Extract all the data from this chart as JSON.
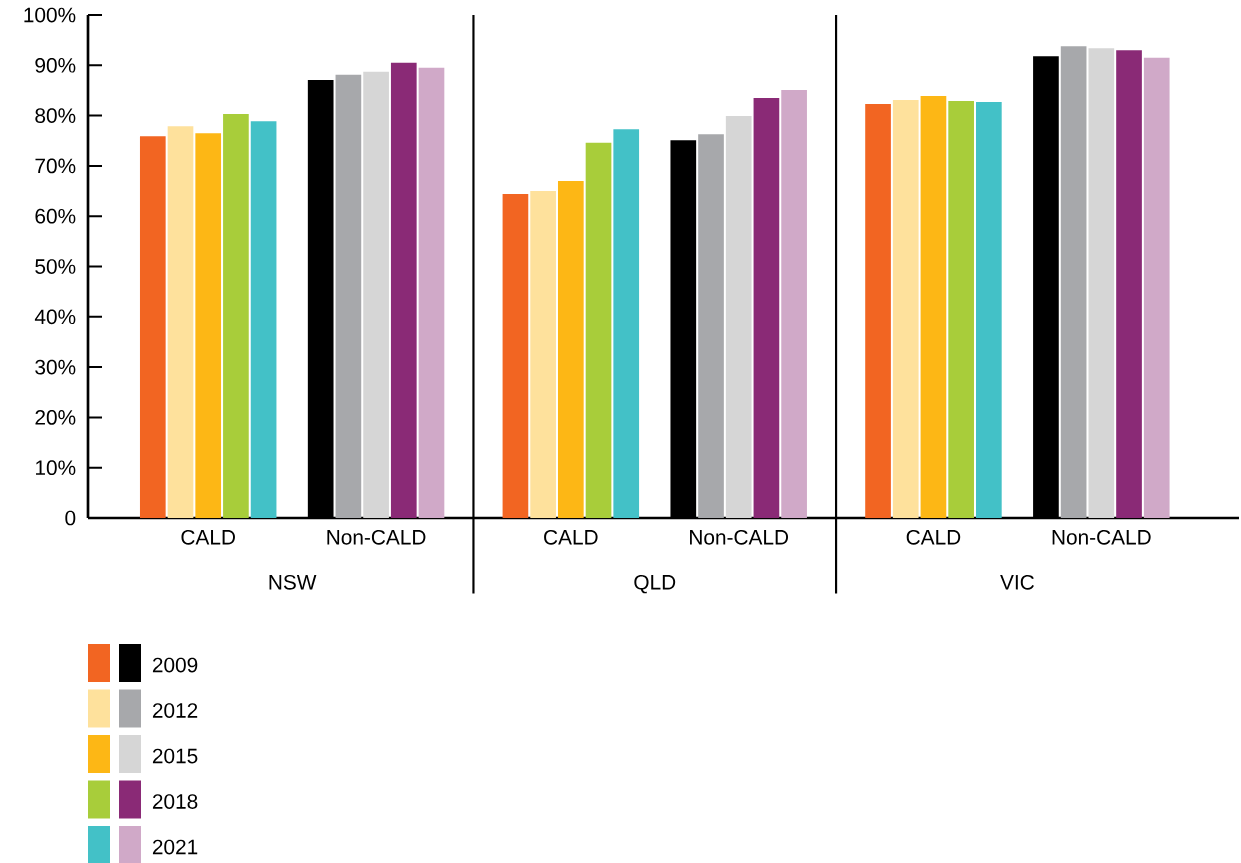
{
  "chart_data": {
    "type": "bar",
    "categories": [
      "CALD",
      "Non-CALD",
      "CALD",
      "Non-CALD",
      "CALD",
      "Non-CALD"
    ],
    "annotations": [
      "NSW",
      "QLD",
      "VIC"
    ],
    "ylim": [
      0,
      100
    ],
    "yticks": [
      0,
      {
        "value": 10,
        "label": "10%"
      },
      {
        "value": 20,
        "label": "20%"
      },
      {
        "value": 30,
        "label": "30%"
      },
      {
        "value": 40,
        "label": "40%"
      },
      {
        "value": 50,
        "label": "50%"
      },
      {
        "value": 60,
        "label": "60%"
      },
      {
        "value": 70,
        "label": "70%"
      },
      {
        "value": 80,
        "label": "80%"
      },
      {
        "value": 90,
        "label": "90%"
      },
      {
        "value": 100,
        "label": "100%"
      }
    ],
    "grid": false,
    "legend": "bottom left",
    "series": [
      {
        "name": "2009",
        "colors": [
          "#f26522",
          "#000000",
          "#f26522",
          "#000000",
          "#f26522",
          "#000000"
        ],
        "values": [
          75.9,
          87.1,
          64.4,
          75.1,
          82.3,
          91.8
        ]
      },
      {
        "name": "2012",
        "colors": [
          "#fee19c",
          "#a7a8ab",
          "#fee19c",
          "#a7a8ab",
          "#fee19c",
          "#a7a8ab"
        ],
        "values": [
          77.9,
          88.1,
          65.0,
          76.3,
          83.1,
          93.8
        ]
      },
      {
        "name": "2015",
        "colors": [
          "#fdb715",
          "#d6d6d6",
          "#fdb715",
          "#d6d6d6",
          "#fdb715",
          "#d6d6d6"
        ],
        "values": [
          76.5,
          88.7,
          67.0,
          79.9,
          83.9,
          93.4
        ]
      },
      {
        "name": "2018",
        "colors": [
          "#a8cd3a",
          "#8a2a76",
          "#a8cd3a",
          "#8a2a76",
          "#a8cd3a",
          "#8a2a76"
        ],
        "values": [
          80.3,
          90.5,
          74.6,
          83.5,
          82.9,
          93.0
        ]
      },
      {
        "name": "2021",
        "colors": [
          "#43c1c7",
          "#d0a9c8",
          "#43c1c7",
          "#d0a9c8",
          "#43c1c7",
          "#d0a9c8"
        ],
        "values": [
          78.9,
          89.5,
          77.3,
          85.1,
          82.7,
          91.5
        ]
      }
    ]
  }
}
